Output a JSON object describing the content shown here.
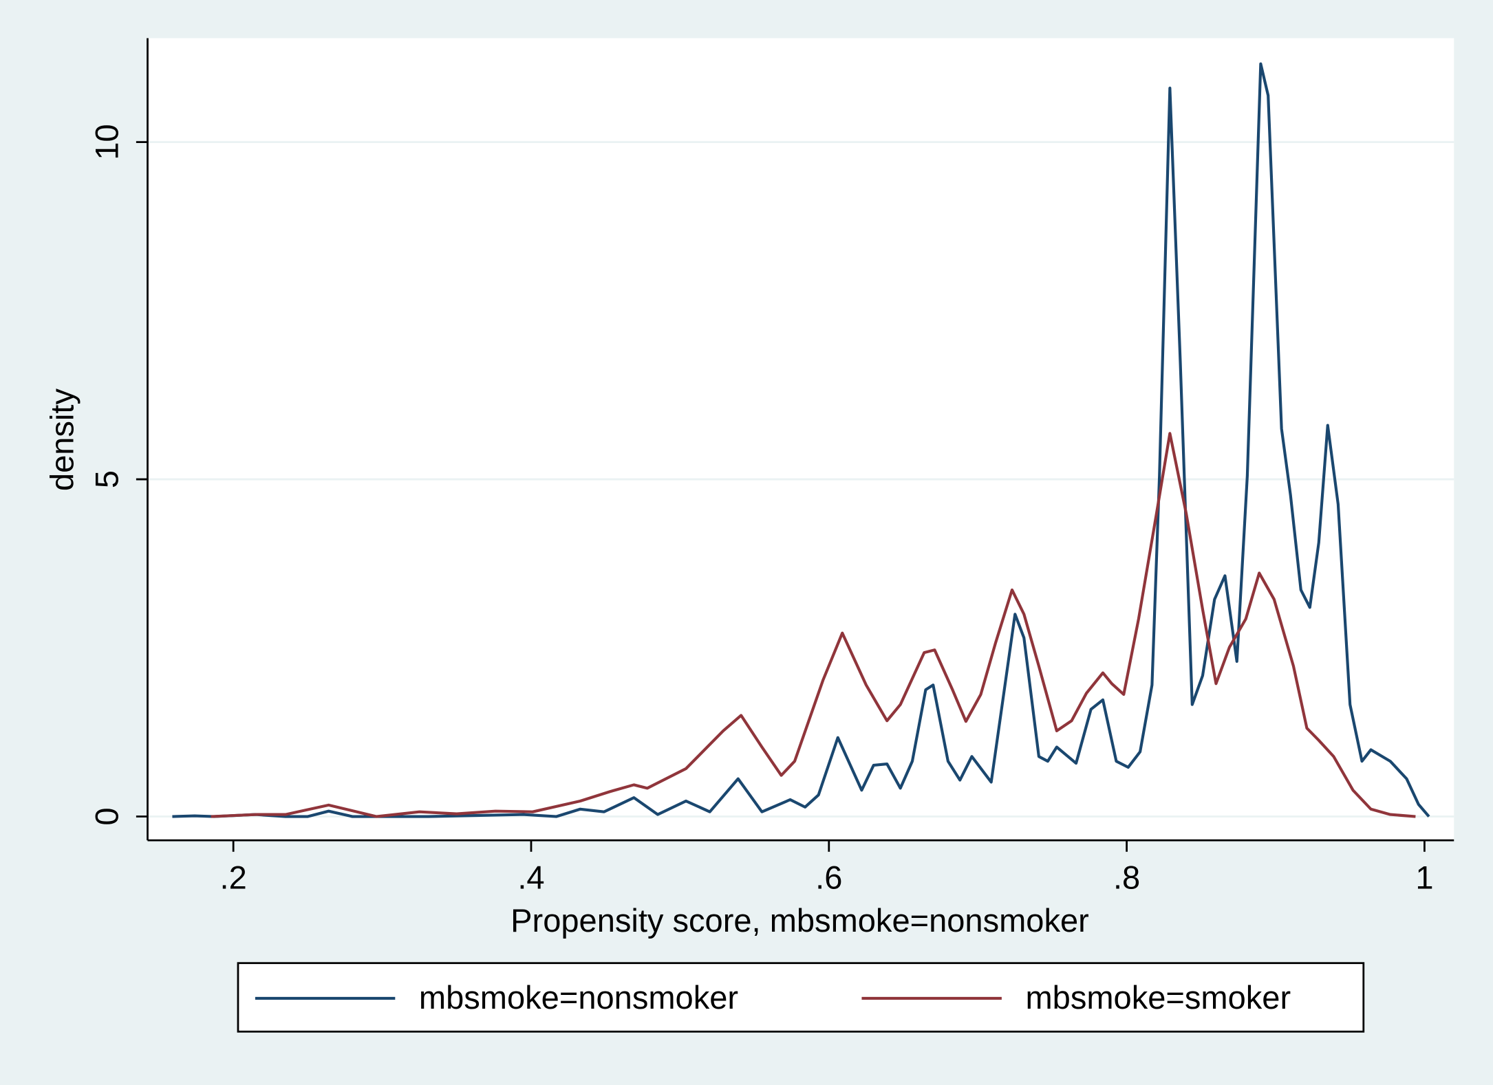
{
  "chart_data": {
    "type": "line",
    "x_label": "Propensity score, mbsmoke=nonsmoker",
    "y_label": "density",
    "xlim": [
      0.1424,
      1.0198
    ],
    "ylim": [
      -0.353,
      11.54
    ],
    "xticks": [
      {
        "value": 0.2,
        "label": ".2"
      },
      {
        "value": 0.4,
        "label": ".4"
      },
      {
        "value": 0.6,
        "label": ".6"
      },
      {
        "value": 0.8,
        "label": ".8"
      },
      1
    ],
    "yticks": [
      0,
      5,
      10
    ],
    "grid": true,
    "legend": "bottom",
    "series": [
      {
        "name": "mbsmoke=nonsmoker",
        "color": "#1a476f",
        "x": [
          0.159,
          0.174,
          0.187,
          0.215,
          0.235,
          0.25,
          0.264,
          0.28,
          0.331,
          0.395,
          0.417,
          0.433,
          0.449,
          0.469,
          0.485,
          0.504,
          0.52,
          0.539,
          0.555,
          0.574,
          0.584,
          0.593,
          0.606,
          0.622,
          0.63,
          0.639,
          0.648,
          0.656,
          0.665,
          0.67,
          0.68,
          0.688,
          0.696,
          0.709,
          0.725,
          0.731,
          0.741,
          0.747,
          0.753,
          0.766,
          0.776,
          0.784,
          0.793,
          0.801,
          0.809,
          0.817,
          0.822,
          0.829,
          0.836,
          0.844,
          0.851,
          0.859,
          0.866,
          0.874,
          0.881,
          0.89,
          0.895,
          0.904,
          0.91,
          0.917,
          0.923,
          0.929,
          0.935,
          0.942,
          0.95,
          0.958,
          0.964,
          0.977,
          0.988,
          0.996,
          1.003
        ],
        "values": [
          0,
          0.01,
          0,
          0.03,
          0,
          0,
          0.08,
          0,
          0,
          0.03,
          0,
          0.11,
          0.07,
          0.28,
          0.03,
          0.23,
          0.07,
          0.56,
          0.07,
          0.25,
          0.14,
          0.32,
          1.17,
          0.39,
          0.76,
          0.78,
          0.42,
          0.82,
          1.88,
          1.95,
          0.82,
          0.54,
          0.89,
          0.51,
          3.0,
          2.65,
          0.89,
          0.82,
          1.03,
          0.79,
          1.59,
          1.73,
          0.82,
          0.73,
          0.96,
          1.95,
          5.05,
          10.8,
          6.74,
          1.66,
          2.09,
          3.22,
          3.57,
          2.3,
          5.05,
          11.16,
          10.69,
          5.75,
          4.77,
          3.36,
          3.1,
          4.06,
          5.8,
          4.63,
          1.66,
          0.82,
          0.99,
          0.82,
          0.56,
          0.18,
          0
        ]
      },
      {
        "name": "mbsmoke=smoker",
        "color": "#90353b",
        "x": [
          0.185,
          0.216,
          0.235,
          0.264,
          0.296,
          0.325,
          0.35,
          0.376,
          0.401,
          0.433,
          0.453,
          0.469,
          0.478,
          0.504,
          0.529,
          0.541,
          0.555,
          0.568,
          0.577,
          0.596,
          0.609,
          0.625,
          0.639,
          0.648,
          0.664,
          0.671,
          0.683,
          0.692,
          0.702,
          0.712,
          0.723,
          0.731,
          0.741,
          0.753,
          0.763,
          0.773,
          0.784,
          0.79,
          0.798,
          0.808,
          0.82,
          0.829,
          0.84,
          0.851,
          0.86,
          0.869,
          0.88,
          0.889,
          0.899,
          0.912,
          0.921,
          0.929,
          0.939,
          0.952,
          0.964,
          0.977,
          0.994
        ],
        "values": [
          0,
          0.03,
          0.03,
          0.17,
          0,
          0.07,
          0.04,
          0.08,
          0.07,
          0.23,
          0.37,
          0.47,
          0.42,
          0.71,
          1.27,
          1.5,
          1.03,
          0.61,
          0.82,
          2.02,
          2.72,
          1.95,
          1.42,
          1.66,
          2.43,
          2.47,
          1.88,
          1.41,
          1.81,
          2.58,
          3.36,
          3.0,
          2.23,
          1.27,
          1.42,
          1.83,
          2.13,
          1.97,
          1.81,
          2.93,
          4.49,
          5.68,
          4.49,
          3.07,
          1.97,
          2.51,
          2.93,
          3.61,
          3.22,
          2.23,
          1.31,
          1.13,
          0.89,
          0.39,
          0.11,
          0.03,
          0
        ]
      }
    ]
  }
}
